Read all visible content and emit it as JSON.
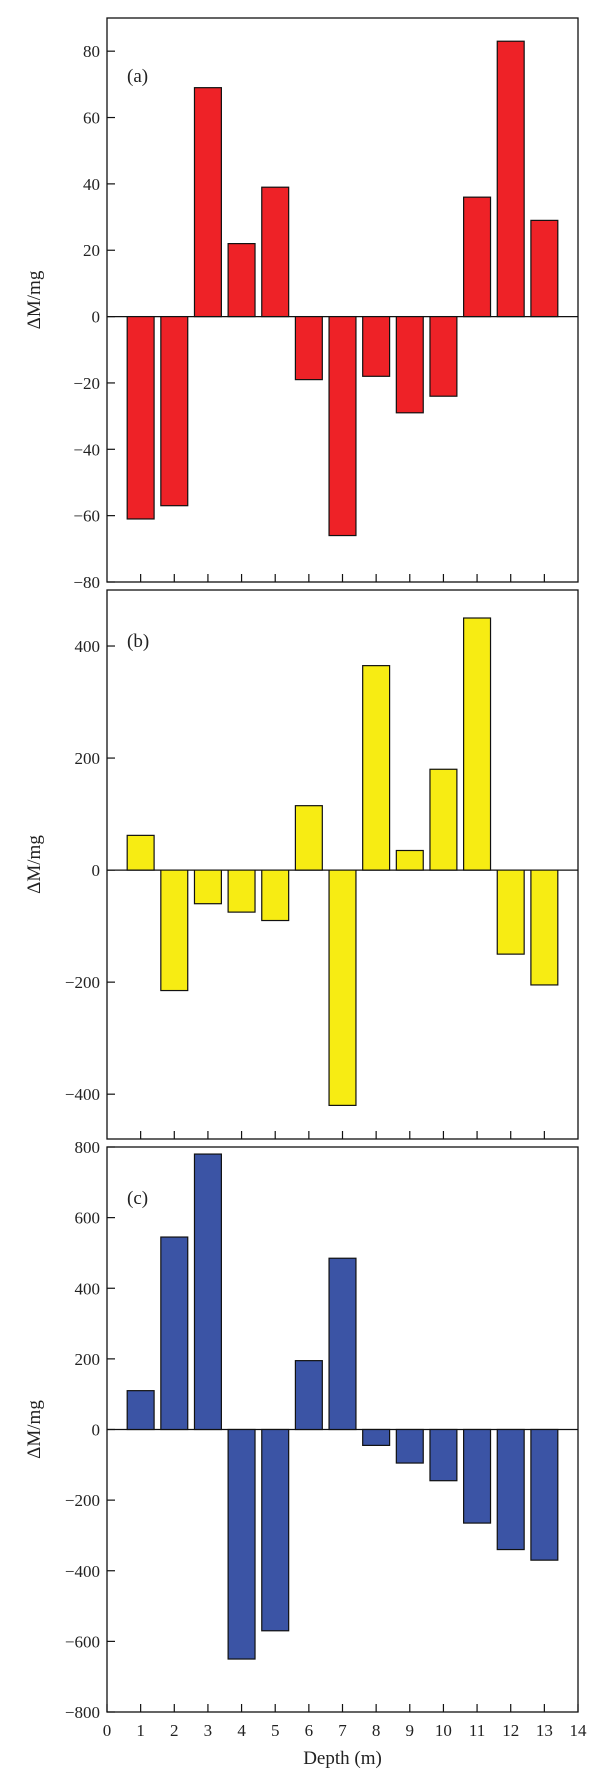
{
  "chart_data": [
    {
      "type": "bar",
      "panel_label": "(a)",
      "ylabel": "ΔM/mg",
      "xlabel": "",
      "ylim": [
        -80,
        90
      ],
      "yticks": [
        -80,
        -60,
        -40,
        -20,
        0,
        20,
        40,
        60,
        80
      ],
      "xlim": [
        0,
        14
      ],
      "color": "#ee2227",
      "x": [
        1,
        2,
        3,
        4,
        5,
        6,
        7,
        8,
        9,
        10,
        11,
        12,
        13
      ],
      "values": [
        -61,
        -57,
        69,
        22,
        39,
        -19,
        -66,
        -18,
        -29,
        -24,
        36,
        83,
        29
      ]
    },
    {
      "type": "bar",
      "panel_label": "(b)",
      "ylabel": "ΔM/mg",
      "xlabel": "",
      "ylim": [
        -480,
        500
      ],
      "yticks": [
        -400,
        -200,
        0,
        200,
        400
      ],
      "xlim": [
        0,
        14
      ],
      "color": "#f7ec13",
      "x": [
        1,
        2,
        3,
        4,
        5,
        6,
        7,
        8,
        9,
        10,
        11,
        12,
        13
      ],
      "values": [
        62,
        -215,
        -60,
        -75,
        -90,
        115,
        -420,
        365,
        35,
        180,
        450,
        -150,
        -205
      ]
    },
    {
      "type": "bar",
      "panel_label": "(c)",
      "ylabel": "ΔM/mg",
      "xlabel": "Depth (m)",
      "ylim": [
        -800,
        800
      ],
      "yticks": [
        -800,
        -600,
        -400,
        -200,
        0,
        200,
        400,
        600,
        800
      ],
      "xlim": [
        0,
        14
      ],
      "xticks": [
        0,
        1,
        2,
        3,
        4,
        5,
        6,
        7,
        8,
        9,
        10,
        11,
        12,
        13,
        14
      ],
      "color": "#3b54a5",
      "x": [
        1,
        2,
        3,
        4,
        5,
        6,
        7,
        8,
        9,
        10,
        11,
        12,
        13
      ],
      "values": [
        110,
        545,
        780,
        -650,
        -570,
        195,
        485,
        -45,
        -95,
        -145,
        -265,
        -340,
        -370
      ]
    }
  ]
}
